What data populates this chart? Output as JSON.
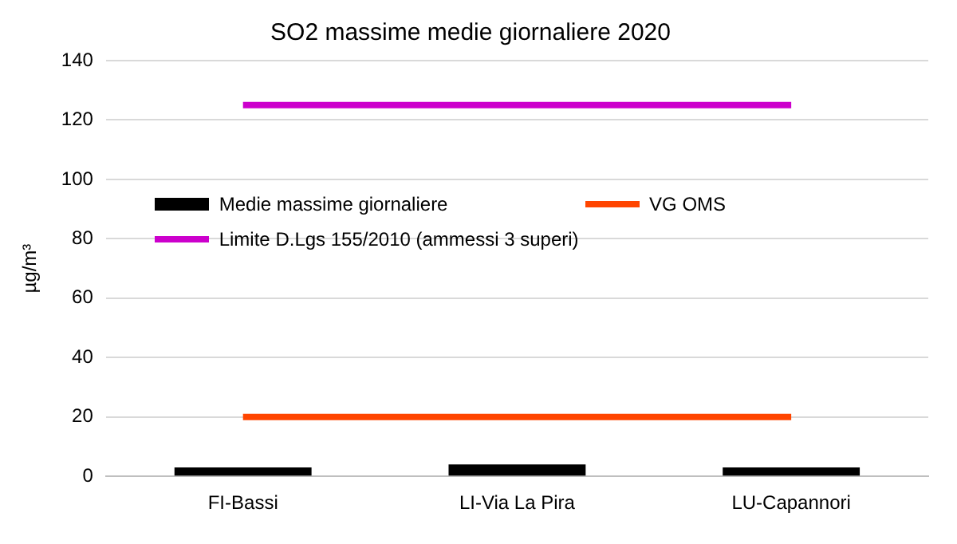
{
  "chart_data": {
    "type": "bar",
    "title": "SO2 massime medie giornaliere 2020",
    "ylabel": "µg/m³",
    "categories": [
      "FI-Bassi",
      "LI-Via La Pira",
      "LU-Capannori"
    ],
    "series": [
      {
        "name": "Medie massime giornaliere",
        "color": "#000000",
        "values": [
          3,
          4,
          3
        ]
      },
      {
        "name": "VG OMS",
        "type": "line",
        "color": "#ff4500",
        "values": [
          20,
          20,
          20
        ]
      },
      {
        "name": "Limite D.Lgs 155/2010 (ammessi 3 superi)",
        "type": "line",
        "color": "#cc00cc",
        "values": [
          125,
          125,
          125
        ]
      }
    ],
    "ylim": [
      0,
      140
    ],
    "yticks": [
      0,
      20,
      40,
      60,
      80,
      100,
      120,
      140
    ],
    "grid": "y",
    "legend": "top left",
    "marker": "none"
  }
}
